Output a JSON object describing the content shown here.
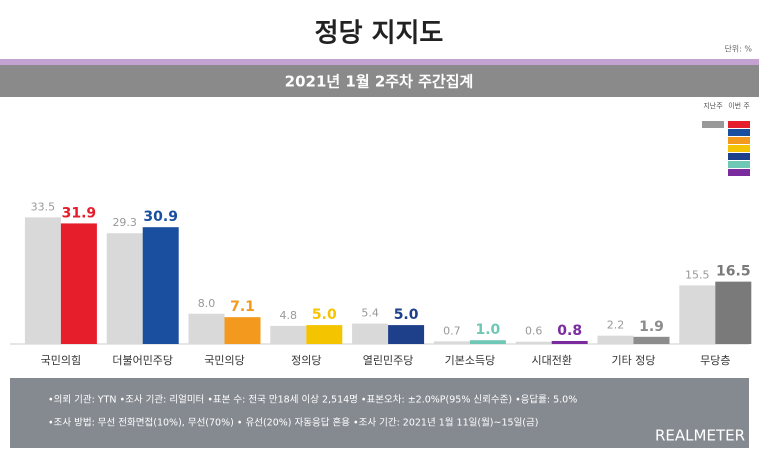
{
  "chart_data": {
    "type": "bar",
    "title": "정당 지지도",
    "unit": "단위: %",
    "subtitle": "2021년 1월 2주차 주간집계",
    "categories": [
      "국민의힘",
      "더불어민주당",
      "국민의당",
      "정의당",
      "열린민주당",
      "기본소득당",
      "시대전환",
      "기타 정당",
      "무당층"
    ],
    "series": [
      {
        "name": "지난주",
        "color": "#d9d9d9",
        "values": [
          33.5,
          29.3,
          8.0,
          4.8,
          5.4,
          0.7,
          0.6,
          2.2,
          15.5
        ],
        "value_labels": [
          "33.5",
          "29.3",
          "8.0",
          "4.8",
          "5.4",
          "0.7",
          "0.6",
          "2.2",
          "15.5"
        ]
      },
      {
        "name": "이번 주",
        "colors": [
          "#e61e2b",
          "#1a4fa0",
          "#f39a1e",
          "#f5c400",
          "#1e3f8a",
          "#6fc7b5",
          "#7a2b9e",
          "#8c8c8c",
          "#7a7a7a"
        ],
        "values": [
          31.9,
          30.9,
          7.1,
          5.0,
          5.0,
          1.0,
          0.8,
          1.9,
          16.5
        ],
        "value_labels": [
          "31.9",
          "30.9",
          "7.1",
          "5.0",
          "5.0",
          "1.0",
          "0.8",
          "1.9",
          "16.5"
        ]
      }
    ],
    "notes": [
      "•의뢰 기관: YTN •조사 기관: 리얼미터 •표본 수: 전국 만18세 이상 2,514명 •표본오차: ±2.0%P(95% 신뢰수준) •응답률: 5.0%",
      "•조사 방법: 무선 전화면접(10%), 무선(70%) • 유선(20%) 자동응답 혼용 •조사 기간: 2021년 1월 11일(월)~15일(금)"
    ],
    "brand": "REALMETER"
  }
}
